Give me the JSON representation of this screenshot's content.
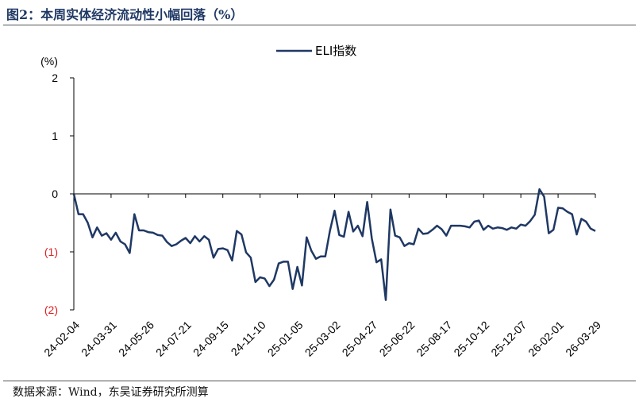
{
  "figure": {
    "title": "图2：本周实体经济流动性小幅回落（%）",
    "source": "数据来源：Wind，东吴证券研究所测算"
  },
  "colors": {
    "line": "#1f3864",
    "negative_tick": "#e02020",
    "axis": "#000000"
  },
  "chart_data": {
    "type": "line",
    "unit_label": "(%)",
    "ylim": [
      -2,
      2
    ],
    "grid": false,
    "legend_position": "top-center",
    "y_ticks": [
      {
        "value": 2,
        "label": "2"
      },
      {
        "value": 1,
        "label": "1"
      },
      {
        "value": 0,
        "label": "0"
      },
      {
        "value": -1,
        "label": "(1)"
      },
      {
        "value": -2,
        "label": "(2)"
      }
    ],
    "x_ticks": [
      "24-02-04",
      "24-03-31",
      "24-05-26",
      "24-07-21",
      "24-09-15",
      "24-11-10",
      "25-01-05",
      "25-03-02",
      "25-04-27",
      "25-06-22",
      "25-08-17",
      "25-10-12",
      "25-12-07",
      "26-02-01",
      "26-03-29"
    ],
    "series": [
      {
        "name": "ELI指数",
        "x": [
          "24-02-04",
          "24-02-11",
          "24-02-18",
          "24-02-25",
          "24-03-03",
          "24-03-10",
          "24-03-17",
          "24-03-24",
          "24-03-31",
          "24-04-07",
          "24-04-14",
          "24-04-21",
          "24-04-28",
          "24-05-05",
          "24-05-12",
          "24-05-19",
          "24-05-26",
          "24-06-02",
          "24-06-09",
          "24-06-16",
          "24-06-23",
          "24-06-30",
          "24-07-07",
          "24-07-14",
          "24-07-21",
          "24-07-28",
          "24-08-04",
          "24-08-11",
          "24-08-18",
          "24-08-25",
          "24-09-01",
          "24-09-08",
          "24-09-15",
          "24-09-22",
          "24-09-29",
          "24-10-06",
          "24-10-13",
          "24-10-20",
          "24-10-27",
          "24-11-03",
          "24-11-10",
          "24-11-17",
          "24-11-24",
          "24-12-01",
          "24-12-08",
          "24-12-15",
          "24-12-22",
          "24-12-29",
          "25-01-05",
          "25-01-12",
          "25-01-19",
          "25-01-26",
          "25-02-02",
          "25-02-09",
          "25-02-16",
          "25-02-23",
          "25-03-02",
          "25-03-09",
          "25-03-16",
          "25-03-23",
          "25-03-30",
          "25-04-06",
          "25-04-13",
          "25-04-20",
          "25-04-27",
          "25-05-04",
          "25-05-11",
          "25-05-18",
          "25-05-25",
          "25-06-01",
          "25-06-08",
          "25-06-15",
          "25-06-22",
          "25-06-29",
          "25-07-06",
          "25-07-13",
          "25-07-20",
          "25-07-27",
          "25-08-03",
          "25-08-10",
          "25-08-17",
          "25-08-24",
          "25-08-31",
          "25-09-07",
          "25-09-14",
          "25-09-21",
          "25-09-28",
          "25-10-05",
          "25-10-12",
          "25-10-19",
          "25-10-26",
          "25-11-02",
          "25-11-09",
          "25-11-16",
          "25-11-23",
          "25-11-30",
          "25-12-07",
          "25-12-14",
          "25-12-21",
          "25-12-28",
          "26-01-04",
          "26-01-11",
          "26-01-18",
          "26-01-25",
          "26-02-01",
          "26-02-08",
          "26-02-15",
          "26-02-22",
          "26-03-01",
          "26-03-08",
          "26-03-15",
          "26-03-22",
          "26-03-29"
        ],
        "values": [
          0.0,
          -0.35,
          -0.35,
          -0.5,
          -0.75,
          -0.58,
          -0.72,
          -0.68,
          -0.79,
          -0.67,
          -0.82,
          -0.87,
          -1.02,
          -0.35,
          -0.63,
          -0.63,
          -0.66,
          -0.67,
          -0.71,
          -0.72,
          -0.83,
          -0.9,
          -0.87,
          -0.81,
          -0.76,
          -0.85,
          -0.73,
          -0.82,
          -0.73,
          -0.79,
          -1.1,
          -0.95,
          -0.94,
          -0.97,
          -1.15,
          -0.64,
          -0.7,
          -1.01,
          -1.1,
          -1.52,
          -1.44,
          -1.46,
          -1.59,
          -1.48,
          -1.2,
          -1.17,
          -1.17,
          -1.64,
          -1.26,
          -1.58,
          -0.75,
          -0.98,
          -1.12,
          -1.08,
          -1.08,
          -0.64,
          -0.29,
          -0.71,
          -0.74,
          -0.31,
          -0.65,
          -0.55,
          -0.73,
          -0.14,
          -0.77,
          -1.18,
          -1.13,
          -1.83,
          -0.27,
          -0.72,
          -0.75,
          -0.9,
          -0.85,
          -0.87,
          -0.6,
          -0.69,
          -0.68,
          -0.62,
          -0.55,
          -0.61,
          -0.72,
          -0.55,
          -0.55,
          -0.55,
          -0.56,
          -0.58,
          -0.48,
          -0.46,
          -0.62,
          -0.55,
          -0.6,
          -0.58,
          -0.59,
          -0.62,
          -0.58,
          -0.6,
          -0.53,
          -0.55,
          -0.47,
          -0.36,
          0.08,
          -0.05,
          -0.68,
          -0.62,
          -0.24,
          -0.25,
          -0.31,
          -0.35,
          -0.7,
          -0.43,
          -0.48,
          -0.6,
          -0.64
        ]
      }
    ]
  }
}
